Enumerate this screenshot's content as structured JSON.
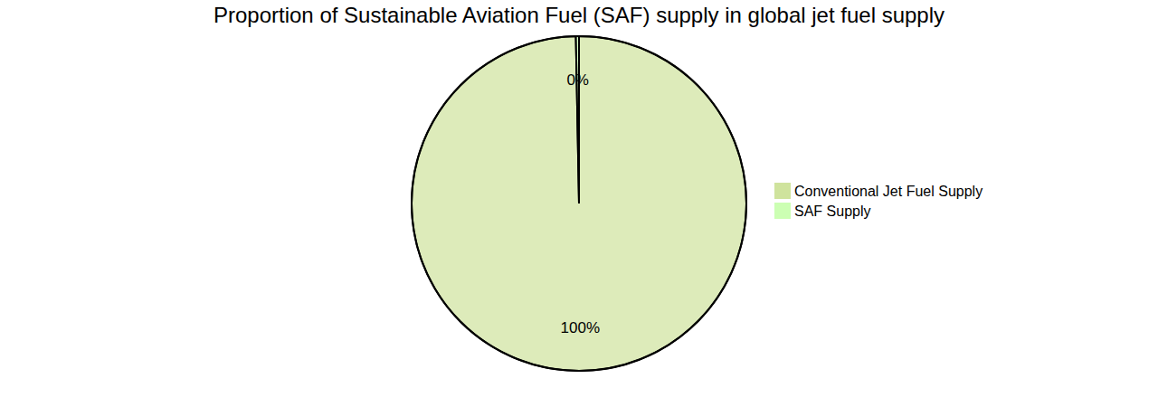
{
  "chart_data": {
    "type": "pie",
    "title": "Proportion of Sustainable Aviation Fuel (SAF) supply in global jet fuel supply",
    "categories": [
      "Conventional Jet Fuel Supply",
      "SAF Supply"
    ],
    "values": [
      99.7,
      0.3
    ],
    "value_labels": [
      "100%",
      "0%"
    ],
    "colors": [
      "#cfe39d",
      "#ccffb3"
    ],
    "data_labels": true,
    "legend": "right"
  }
}
